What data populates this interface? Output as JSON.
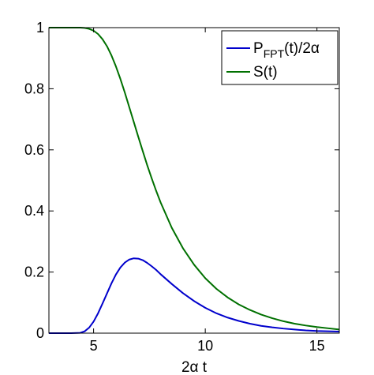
{
  "chart_data": {
    "type": "line",
    "xlabel": "2α t",
    "ylabel": "",
    "title": "",
    "xlim": [
      3,
      16
    ],
    "ylim": [
      0,
      1
    ],
    "xticks": [
      5,
      10,
      15
    ],
    "yticks": [
      0,
      0.2,
      0.4,
      0.6,
      0.8,
      1
    ],
    "ytick_labels": [
      "0",
      "0.2",
      "0.4",
      "0.6",
      "0.8",
      "1"
    ],
    "grid": false,
    "legend_position": "top-right",
    "series": [
      {
        "name": "P_FPT(t)/2α",
        "legend_main": "P",
        "legend_sub": "FPT",
        "legend_rest": "(t)/2α",
        "color": "#0000cc",
        "x": [
          3,
          4,
          4.4,
          4.6,
          4.8,
          5,
          5.2,
          5.4,
          5.6,
          5.8,
          6,
          6.2,
          6.4,
          6.6,
          6.8,
          7,
          7.2,
          7.4,
          7.6,
          7.8,
          8,
          8.5,
          9,
          9.5,
          10,
          10.5,
          11,
          11.5,
          12,
          12.5,
          13,
          13.5,
          14,
          14.5,
          15,
          15.5,
          16
        ],
        "y": [
          0,
          0,
          0.001,
          0.006,
          0.018,
          0.038,
          0.065,
          0.097,
          0.13,
          0.163,
          0.192,
          0.215,
          0.231,
          0.241,
          0.245,
          0.244,
          0.239,
          0.23,
          0.219,
          0.207,
          0.193,
          0.161,
          0.131,
          0.105,
          0.083,
          0.065,
          0.051,
          0.04,
          0.031,
          0.024,
          0.019,
          0.015,
          0.012,
          0.009,
          0.007,
          0.006,
          0.005
        ]
      },
      {
        "name": "S(t)",
        "color": "#007000",
        "x": [
          3,
          4,
          4.4,
          4.6,
          4.8,
          5,
          5.2,
          5.4,
          5.6,
          5.8,
          6,
          6.2,
          6.4,
          6.6,
          6.8,
          7,
          7.2,
          7.4,
          7.6,
          7.8,
          8,
          8.5,
          9,
          9.5,
          10,
          10.5,
          11,
          11.5,
          12,
          12.5,
          13,
          13.5,
          14,
          14.5,
          15,
          15.5,
          16
        ],
        "y": [
          1,
          1,
          1,
          0.999,
          0.996,
          0.99,
          0.979,
          0.962,
          0.939,
          0.909,
          0.873,
          0.832,
          0.787,
          0.739,
          0.691,
          0.643,
          0.596,
          0.55,
          0.507,
          0.466,
          0.428,
          0.345,
          0.278,
          0.224,
          0.18,
          0.145,
          0.117,
          0.094,
          0.076,
          0.061,
          0.049,
          0.039,
          0.031,
          0.025,
          0.02,
          0.016,
          0.012
        ]
      }
    ]
  }
}
